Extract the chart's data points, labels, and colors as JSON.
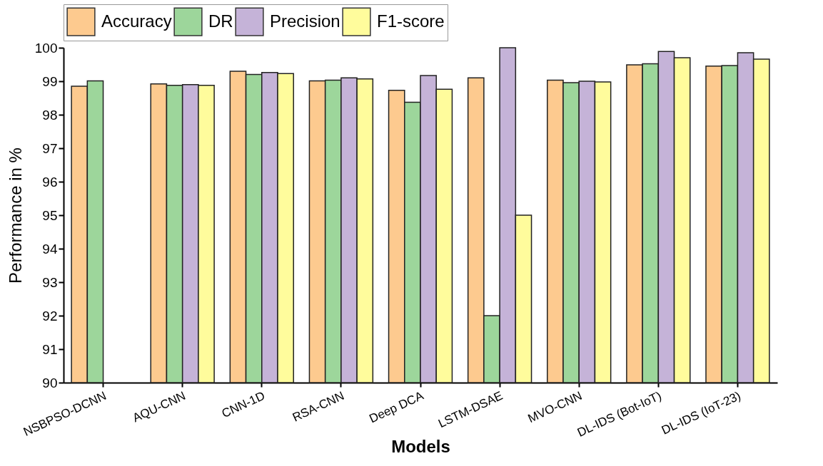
{
  "chart_data": {
    "type": "bar",
    "xlabel": "Models",
    "ylabel": "Performance in %",
    "categories": [
      "NSBPSO-DCNN",
      "AQU-CNN",
      "CNN-1D",
      "RSA-CNN",
      "Deep DCA",
      "LSTM-DSAE",
      "MVO-CNN",
      "DL-IDS (Bot-IoT)",
      "DL-IDS (IoT-23)"
    ],
    "series": [
      {
        "name": "Accuracy",
        "color": "#fdca8f",
        "values": [
          98.85,
          98.92,
          99.3,
          99.01,
          98.73,
          99.1,
          99.03,
          99.49,
          99.45
        ]
      },
      {
        "name": "DR",
        "color": "#9dd69b",
        "values": [
          99.01,
          98.88,
          99.2,
          99.03,
          98.37,
          92,
          98.96,
          99.52,
          99.47
        ]
      },
      {
        "name": "Precision",
        "color": "#c5b3d8",
        "values": [
          null,
          98.9,
          99.26,
          99.1,
          99.17,
          100,
          99.0,
          99.89,
          99.85
        ]
      },
      {
        "name": "F1-score",
        "color": "#fffc9c",
        "values": [
          null,
          98.88,
          99.23,
          99.07,
          98.76,
          95,
          98.98,
          99.7,
          99.66
        ]
      }
    ],
    "ylim": [
      90,
      100
    ],
    "yticks": [
      90,
      91,
      92,
      93,
      94,
      95,
      96,
      97,
      98,
      99,
      100
    ],
    "grid": false,
    "legend": "top"
  }
}
